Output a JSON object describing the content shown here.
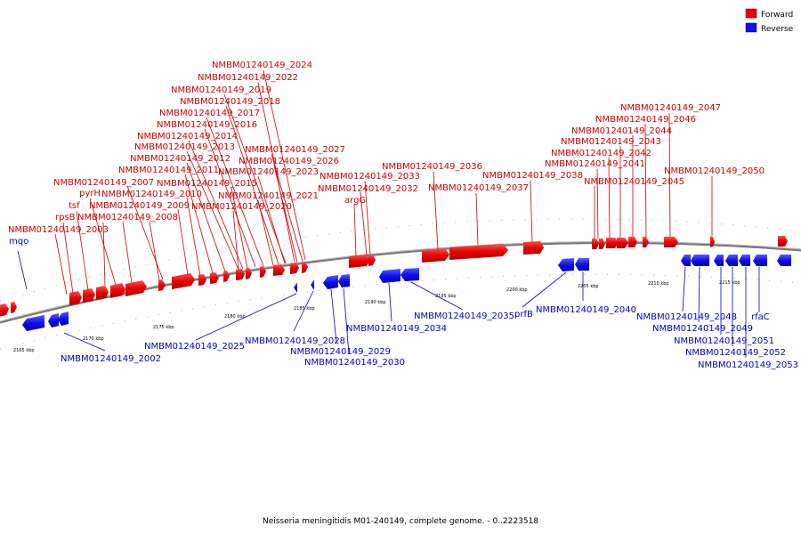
{
  "caption": "Neisseria meningitidis M01-240149, complete genome. - 0..2223518",
  "legend": [
    {
      "label": "Forward",
      "color": "#ee0000"
    },
    {
      "label": "Reverse",
      "color": "#1010ee"
    }
  ],
  "ticks": [
    "2165 kbp",
    "2170 kbp",
    "2175 kbp",
    "2180 kbp",
    "2185 kbp",
    "2190 kbp",
    "2195 kbp",
    "2200 kbp",
    "2205 kbp",
    "2210 kbp",
    "2215 kbp"
  ],
  "forward_labels": [
    "NMBM01240149_2024",
    "NMBM01240149_2022",
    "NMBM01240149_2019",
    "NMBM01240149_2018",
    "NMBM01240149_2017",
    "NMBM01240149_2016",
    "NMBM01240149_2014",
    "NMBM01240149_2013",
    "NMBM01240149_2012",
    "NMBM01240149_2011",
    "NMBM01240149_2007",
    "pyrH",
    "NMBM01240149_2010",
    "tsf",
    "NMBM01240149_2009",
    "rpsB",
    "NMBM01240149_2008",
    "NMBM01240149_2003",
    "NMBM01240149_2027",
    "NMBM01240149_2026",
    "NMBM01240149_2023",
    "NMBM01240149_2015",
    "NMBM01240149_2021",
    "NMBM01240149_2020",
    "NMBM01240149_2033",
    "NMBM01240149_2032",
    "argG",
    "NMBM01240149_2036",
    "NMBM01240149_2037",
    "NMBM01240149_2038",
    "NMBM01240149_2047",
    "NMBM01240149_2046",
    "NMBM01240149_2044",
    "NMBM01240149_2043",
    "NMBM01240149_2042",
    "NMBM01240149_2041",
    "NMBM01240149_2045",
    "NMBM01240149_2050"
  ],
  "reverse_labels": [
    "mqo",
    "NMBM01240149_2002",
    "NMBM01240149_2025",
    "NMBM01240149_2028",
    "NMBM01240149_2029",
    "NMBM01240149_2030",
    "NMBM01240149_2034",
    "NMBM01240149_2035",
    "prfB",
    "NMBM01240149_2040",
    "NMBM01240149_2048",
    "rfaC",
    "NMBM01240149_2049",
    "NMBM01240149_2051",
    "NMBM01240149_2052",
    "NMBM01240149_2053"
  ]
}
